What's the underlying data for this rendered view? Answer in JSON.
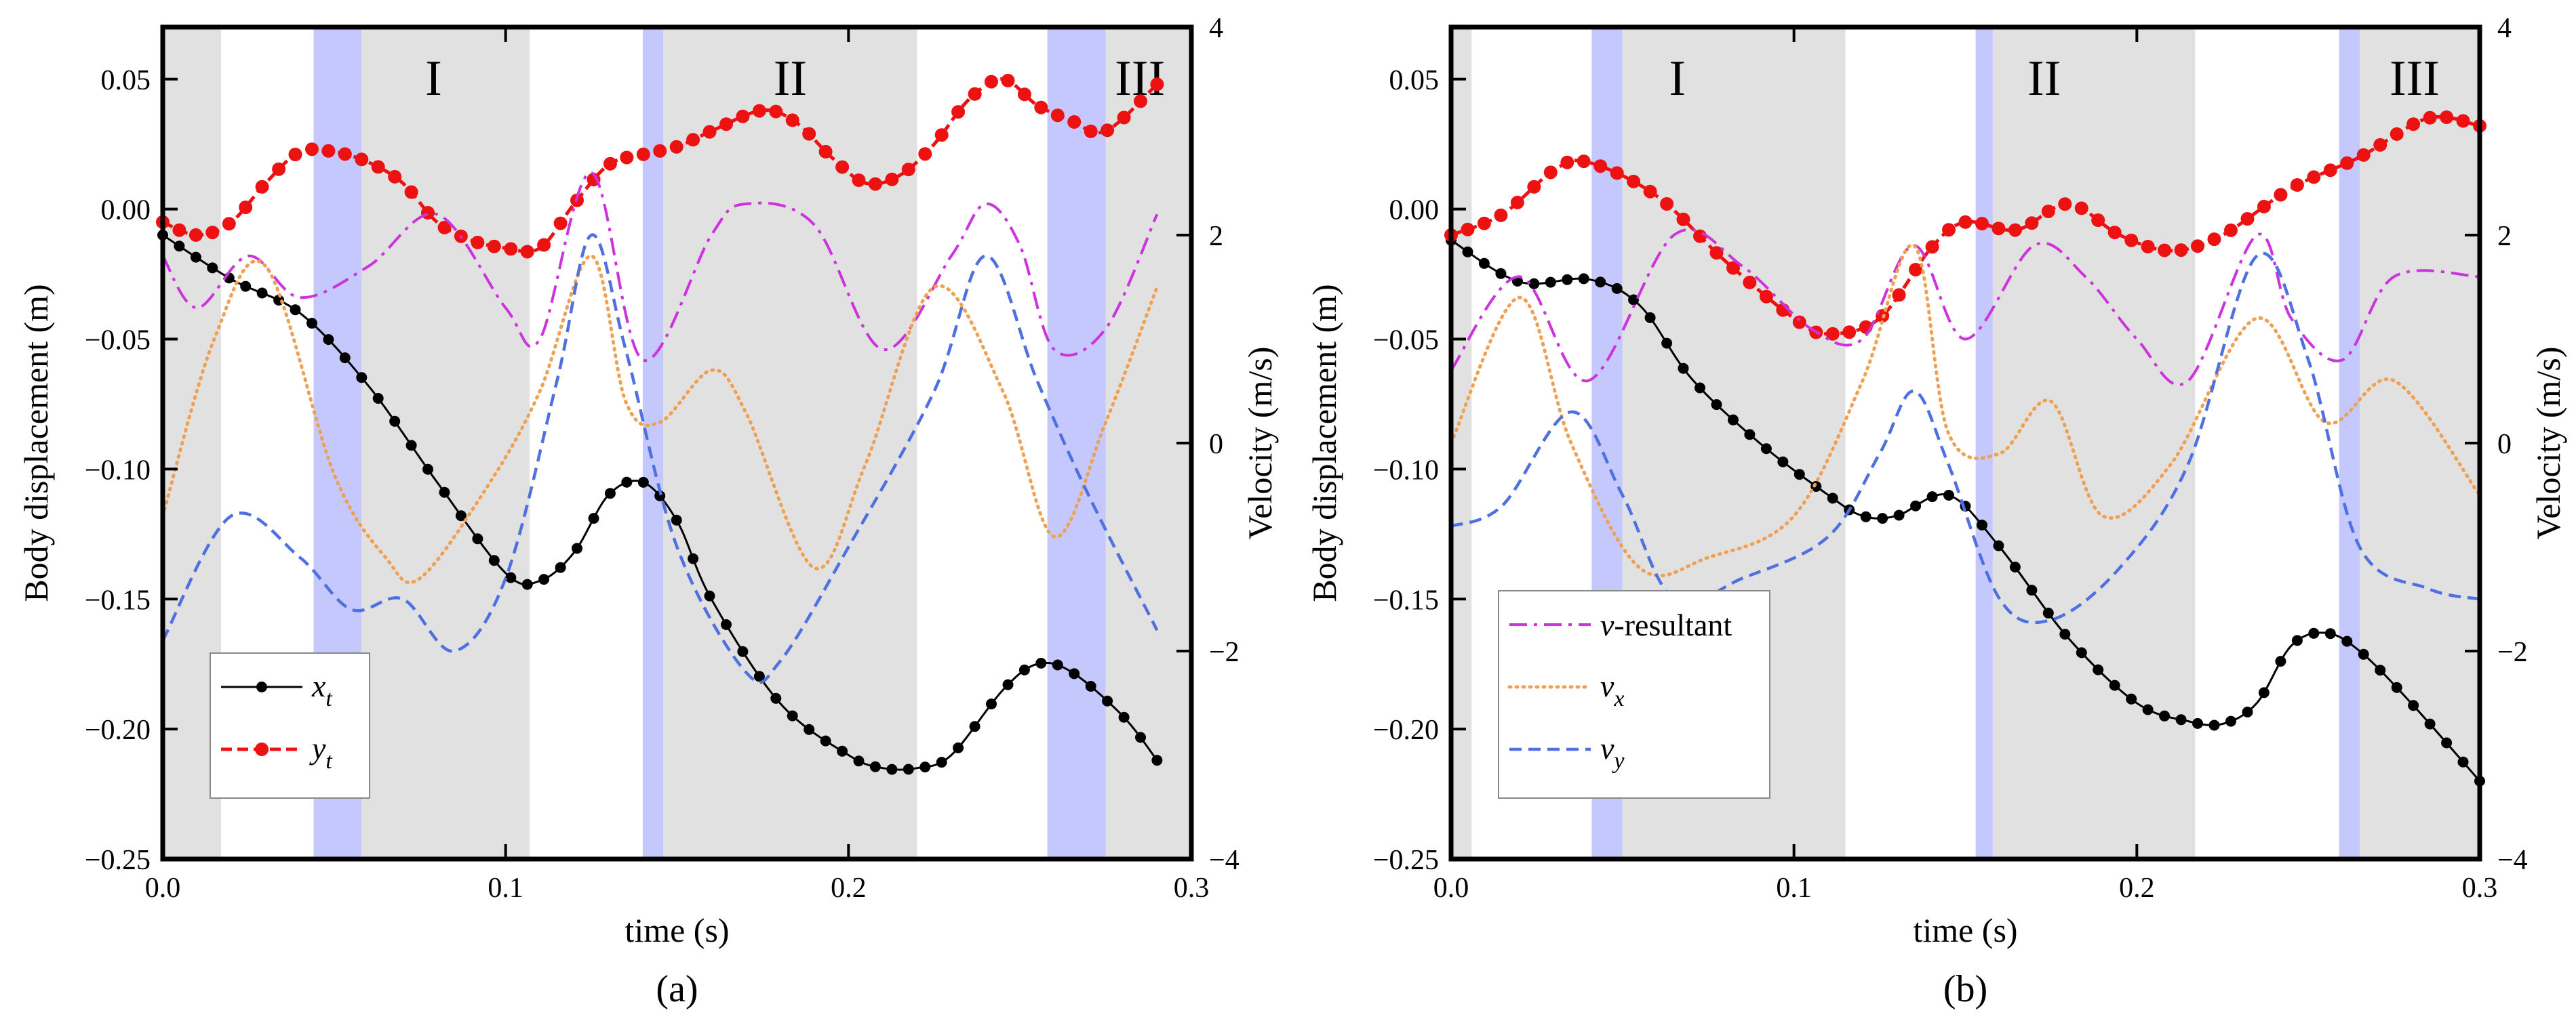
{
  "colors": {
    "gray_band": "#e1e1e1",
    "blue_band": "#c4c8fc",
    "xt": "#000000",
    "yt": "#ee1111",
    "v_resultant": "#cc33dd",
    "vx": "#f0a050",
    "vy": "#4f70e0"
  },
  "chart_data": [
    {
      "type": "line",
      "panel_label": "(a)",
      "xlabel": "time (s)",
      "ylabel": "Body displacement (m)",
      "y2label": "Velocity (m/s)",
      "xlim": [
        0,
        0.3
      ],
      "ylim": [
        -0.25,
        0.07
      ],
      "y2lim": [
        -4,
        4
      ],
      "x_ticks": [
        0,
        0.1,
        0.2,
        0.3
      ],
      "x_tick_labels": [
        "0.0",
        "0.1",
        "0.2",
        "0.3"
      ],
      "y_ticks": [
        0.05,
        0,
        -0.05,
        -0.1,
        -0.15,
        -0.2,
        -0.25
      ],
      "y_tick_labels": [
        "0.05",
        "0.00",
        "−0.05",
        "−0.10",
        "−0.15",
        "−0.20",
        "−0.25"
      ],
      "y2_ticks": [
        4,
        2,
        0,
        -2,
        -4
      ],
      "y2_tick_labels": [
        "4",
        "2",
        "0",
        "−2",
        "−4"
      ],
      "bands": [
        {
          "x0": 0.0,
          "x1": 0.017,
          "kind": "gray"
        },
        {
          "x0": 0.044,
          "x1": 0.058,
          "kind": "blue"
        },
        {
          "x0": 0.058,
          "x1": 0.107,
          "kind": "gray"
        },
        {
          "x0": 0.14,
          "x1": 0.146,
          "kind": "blue"
        },
        {
          "x0": 0.146,
          "x1": 0.22,
          "kind": "gray"
        },
        {
          "x0": 0.258,
          "x1": 0.275,
          "kind": "blue"
        },
        {
          "x0": 0.275,
          "x1": 0.3,
          "kind": "gray"
        }
      ],
      "phase_labels": [
        {
          "text": "I",
          "x": 0.079
        },
        {
          "text": "II",
          "x": 0.183
        },
        {
          "text": "III",
          "x": 0.285
        }
      ],
      "legend": {
        "position": "bottom-left",
        "entries": [
          "xt",
          "yt"
        ]
      },
      "series": [
        {
          "key": "xt",
          "name": "x",
          "name_sub": "t",
          "axis": "left",
          "style": "solid-marker",
          "x": [
            0,
            0.02,
            0.04,
            0.06,
            0.08,
            0.1,
            0.11,
            0.12,
            0.13,
            0.14,
            0.15,
            0.16,
            0.18,
            0.2,
            0.21,
            0.22,
            0.23,
            0.245,
            0.255,
            0.265,
            0.28,
            0.29
          ],
          "y": [
            -0.01,
            -0.027,
            -0.04,
            -0.068,
            -0.105,
            -0.14,
            -0.143,
            -0.132,
            -0.11,
            -0.105,
            -0.12,
            -0.15,
            -0.19,
            -0.21,
            -0.215,
            -0.215,
            -0.21,
            -0.185,
            -0.175,
            -0.178,
            -0.195,
            -0.212
          ]
        },
        {
          "key": "yt",
          "name": "y",
          "name_sub": "t",
          "axis": "left",
          "style": "dashed-marker",
          "x": [
            0,
            0.01,
            0.02,
            0.03,
            0.04,
            0.05,
            0.06,
            0.07,
            0.08,
            0.09,
            0.1,
            0.11,
            0.12,
            0.13,
            0.14,
            0.15,
            0.16,
            0.175,
            0.185,
            0.195,
            0.205,
            0.215,
            0.225,
            0.235,
            0.245,
            0.255,
            0.265,
            0.275,
            0.29
          ],
          "y": [
            -0.005,
            -0.01,
            -0.005,
            0.01,
            0.022,
            0.022,
            0.018,
            0.01,
            -0.005,
            -0.012,
            -0.015,
            -0.015,
            0.002,
            0.017,
            0.021,
            0.024,
            0.03,
            0.038,
            0.033,
            0.02,
            0.01,
            0.013,
            0.025,
            0.042,
            0.05,
            0.04,
            0.034,
            0.03,
            0.048
          ]
        },
        {
          "key": "v_resultant",
          "name": "v-resultant",
          "axis": "right",
          "style": "dashdot",
          "x": [
            0,
            0.01,
            0.025,
            0.04,
            0.06,
            0.08,
            0.1,
            0.11,
            0.125,
            0.14,
            0.16,
            0.17,
            0.19,
            0.21,
            0.23,
            0.24,
            0.25,
            0.26,
            0.275,
            0.29
          ],
          "y": [
            1.8,
            1.3,
            1.8,
            1.4,
            1.7,
            2.2,
            1.3,
            1.0,
            2.6,
            0.8,
            2.0,
            2.3,
            2.1,
            0.9,
            1.8,
            2.3,
            1.9,
            0.9,
            1.1,
            2.2
          ]
        },
        {
          "key": "vx",
          "name": "v",
          "name_sub": "x",
          "axis": "right",
          "style": "dotted",
          "x": [
            0,
            0.015,
            0.03,
            0.05,
            0.065,
            0.075,
            0.095,
            0.11,
            0.125,
            0.135,
            0.145,
            0.16,
            0.17,
            0.19,
            0.205,
            0.225,
            0.245,
            0.26,
            0.275,
            0.29
          ],
          "y": [
            -0.7,
            1.0,
            1.7,
            -0.3,
            -1.1,
            -1.3,
            -0.4,
            0.5,
            1.8,
            0.4,
            0.2,
            0.7,
            0.3,
            -1.2,
            -0.2,
            1.5,
            0.5,
            -0.9,
            0.2,
            1.5
          ]
        },
        {
          "key": "vy",
          "name": "v",
          "name_sub": "y",
          "axis": "right",
          "style": "dashed",
          "x": [
            0,
            0.02,
            0.04,
            0.055,
            0.07,
            0.085,
            0.1,
            0.115,
            0.125,
            0.135,
            0.15,
            0.17,
            0.18,
            0.2,
            0.225,
            0.24,
            0.255,
            0.27,
            0.29
          ],
          "y": [
            -1.9,
            -0.7,
            -1.1,
            -1.6,
            -1.5,
            -2.0,
            -1.3,
            0.6,
            2.0,
            0.9,
            -1.0,
            -2.2,
            -2.1,
            -1.0,
            0.5,
            1.8,
            0.6,
            -0.5,
            -1.8
          ]
        }
      ]
    },
    {
      "type": "line",
      "panel_label": "(b)",
      "xlabel": "time (s)",
      "ylabel": "Body displacement (m)",
      "y2label": "Velocity (m/s)",
      "xlim": [
        0,
        0.3
      ],
      "ylim": [
        -0.25,
        0.07
      ],
      "y2lim": [
        -4,
        4
      ],
      "x_ticks": [
        0,
        0.1,
        0.2,
        0.3
      ],
      "x_tick_labels": [
        "0.0",
        "0.1",
        "0.2",
        "0.3"
      ],
      "y_ticks": [
        0.05,
        0,
        -0.05,
        -0.1,
        -0.15,
        -0.2,
        -0.25
      ],
      "y_tick_labels": [
        "0.05",
        "0.00",
        "−0.05",
        "−0.10",
        "−0.15",
        "−0.20",
        "−0.25"
      ],
      "y2_ticks": [
        4,
        2,
        0,
        -2,
        -4
      ],
      "y2_tick_labels": [
        "4",
        "2",
        "0",
        "−2",
        "−4"
      ],
      "bands": [
        {
          "x0": 0.0,
          "x1": 0.006,
          "kind": "gray"
        },
        {
          "x0": 0.041,
          "x1": 0.05,
          "kind": "blue"
        },
        {
          "x0": 0.05,
          "x1": 0.115,
          "kind": "gray"
        },
        {
          "x0": 0.153,
          "x1": 0.158,
          "kind": "blue"
        },
        {
          "x0": 0.158,
          "x1": 0.217,
          "kind": "gray"
        },
        {
          "x0": 0.259,
          "x1": 0.265,
          "kind": "blue"
        },
        {
          "x0": 0.265,
          "x1": 0.3,
          "kind": "gray"
        }
      ],
      "phase_labels": [
        {
          "text": "I",
          "x": 0.066
        },
        {
          "text": "II",
          "x": 0.173
        },
        {
          "text": "III",
          "x": 0.281
        }
      ],
      "legend": {
        "position": "bottom-left",
        "entries": [
          "v_resultant",
          "vx",
          "vy"
        ]
      },
      "series": [
        {
          "key": "xt",
          "name": "x",
          "name_sub": "t",
          "axis": "left",
          "style": "solid-marker",
          "x": [
            0,
            0.02,
            0.04,
            0.055,
            0.07,
            0.09,
            0.11,
            0.12,
            0.13,
            0.145,
            0.16,
            0.18,
            0.2,
            0.215,
            0.225,
            0.235,
            0.245,
            0.255,
            0.265,
            0.28,
            0.3
          ],
          "y": [
            -0.012,
            -0.028,
            -0.027,
            -0.037,
            -0.065,
            -0.09,
            -0.11,
            -0.118,
            -0.118,
            -0.11,
            -0.13,
            -0.165,
            -0.19,
            -0.197,
            -0.198,
            -0.19,
            -0.168,
            -0.163,
            -0.17,
            -0.19,
            -0.22
          ]
        },
        {
          "key": "yt",
          "name": "y",
          "name_sub": "t",
          "axis": "left",
          "style": "dashed-marker",
          "x": [
            0,
            0.015,
            0.03,
            0.04,
            0.06,
            0.08,
            0.1,
            0.11,
            0.125,
            0.14,
            0.15,
            0.165,
            0.18,
            0.195,
            0.21,
            0.225,
            0.245,
            0.265,
            0.285,
            0.3
          ],
          "y": [
            -0.01,
            -0.002,
            0.015,
            0.018,
            0.005,
            -0.02,
            -0.042,
            -0.048,
            -0.042,
            -0.015,
            -0.005,
            -0.008,
            0.002,
            -0.01,
            -0.016,
            -0.01,
            0.008,
            0.02,
            0.035,
            0.032
          ]
        },
        {
          "key": "v_resultant",
          "name": "v-resultant",
          "axis": "right",
          "style": "dashdot",
          "x": [
            0,
            0.02,
            0.04,
            0.065,
            0.085,
            0.105,
            0.12,
            0.135,
            0.15,
            0.17,
            0.185,
            0.2,
            0.215,
            0.235,
            0.245,
            0.26,
            0.275,
            0.3
          ],
          "y": [
            0.7,
            1.6,
            0.6,
            2.0,
            1.7,
            1.1,
            1.0,
            1.9,
            1.0,
            1.9,
            1.6,
            1.0,
            0.6,
            2.0,
            1.2,
            0.8,
            1.6,
            1.6
          ]
        },
        {
          "key": "vx",
          "name": "v",
          "name_sub": "x",
          "axis": "right",
          "style": "dotted",
          "x": [
            0,
            0.02,
            0.035,
            0.055,
            0.075,
            0.1,
            0.12,
            0.135,
            0.145,
            0.16,
            0.175,
            0.19,
            0.21,
            0.235,
            0.255,
            0.275,
            0.3
          ],
          "y": [
            0.0,
            1.4,
            0.0,
            -1.2,
            -1.1,
            -0.7,
            0.6,
            1.9,
            0.1,
            -0.1,
            0.4,
            -0.7,
            -0.2,
            1.2,
            0.2,
            0.6,
            -0.5
          ]
        },
        {
          "key": "vy",
          "name": "v",
          "name_sub": "y",
          "axis": "right",
          "style": "dashed",
          "x": [
            0,
            0.015,
            0.035,
            0.05,
            0.065,
            0.085,
            0.11,
            0.125,
            0.135,
            0.145,
            0.16,
            0.175,
            0.195,
            0.215,
            0.235,
            0.25,
            0.265,
            0.285,
            0.3
          ],
          "y": [
            -0.8,
            -0.6,
            0.3,
            -0.5,
            -1.5,
            -1.3,
            -0.9,
            -0.1,
            0.5,
            -0.2,
            -1.5,
            -1.7,
            -1.2,
            -0.2,
            1.8,
            0.8,
            -1.0,
            -1.4,
            -1.5
          ]
        }
      ]
    }
  ]
}
